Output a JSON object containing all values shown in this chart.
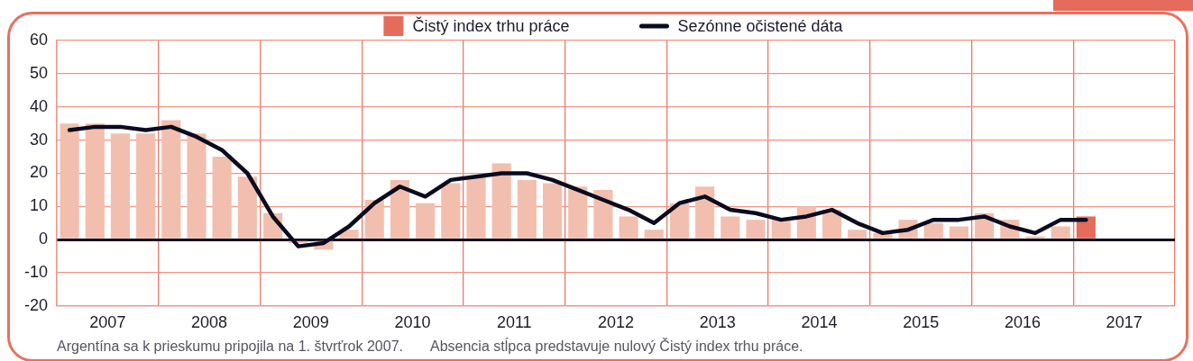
{
  "chart_data": {
    "type": "bar",
    "x": [
      2007.125,
      2007.375,
      2007.625,
      2007.875,
      2008.125,
      2008.375,
      2008.625,
      2008.875,
      2009.125,
      2009.375,
      2009.625,
      2009.875,
      2010.125,
      2010.375,
      2010.625,
      2010.875,
      2011.125,
      2011.375,
      2011.625,
      2011.875,
      2012.125,
      2012.375,
      2012.625,
      2012.875,
      2013.125,
      2013.375,
      2013.625,
      2013.875,
      2014.125,
      2014.375,
      2014.625,
      2014.875,
      2015.125,
      2015.375,
      2015.625,
      2015.875,
      2016.125,
      2016.375,
      2016.625,
      2016.875,
      2017.125
    ],
    "series": [
      {
        "name": "Čistý index trhu práce",
        "color": "#e56b5a",
        "values": [
          null,
          null,
          null,
          null,
          null,
          null,
          null,
          null,
          null,
          null,
          null,
          null,
          null,
          null,
          null,
          null,
          null,
          null,
          null,
          null,
          null,
          null,
          null,
          null,
          null,
          null,
          null,
          null,
          null,
          null,
          null,
          null,
          null,
          null,
          null,
          null,
          null,
          null,
          null,
          null,
          7
        ]
      },
      {
        "color": "#f2bfae",
        "values": [
          35,
          35,
          32,
          32,
          36,
          32,
          25,
          19,
          8,
          -1,
          -3,
          3,
          12,
          18,
          11,
          17,
          19,
          23,
          18,
          17,
          16,
          15,
          7,
          3,
          11,
          16,
          7,
          6,
          6,
          10,
          9,
          3,
          2,
          6,
          5,
          4,
          8,
          6,
          1,
          4,
          null
        ]
      },
      {
        "name": "Sezónne očistené dáta",
        "type": "line",
        "color": "#0b0b1f",
        "values": [
          33,
          34,
          34,
          33,
          34,
          31,
          27,
          20,
          7,
          -2,
          -1,
          4,
          11,
          16,
          13,
          18,
          19,
          20,
          20,
          18,
          15,
          12,
          9,
          5,
          11,
          13,
          9,
          8,
          6,
          7,
          9,
          5,
          2,
          3,
          6,
          6,
          7,
          4,
          2,
          6,
          6
        ]
      }
    ],
    "xlim": [
      2007,
      2018
    ],
    "xticks": [
      {
        "value": 2007,
        "label": null
      },
      {
        "value": 2007.5,
        "label": "2007"
      },
      {
        "value": 2008,
        "label": null
      },
      {
        "value": 2008.5,
        "label": "2008"
      },
      {
        "value": 2009,
        "label": null
      },
      {
        "value": 2009.5,
        "label": "2009"
      },
      {
        "value": 2010,
        "label": null
      },
      {
        "value": 2010.5,
        "label": "2010"
      },
      {
        "value": 2011,
        "label": null
      },
      {
        "value": 2011.5,
        "label": "2011"
      },
      {
        "value": 2012,
        "label": null
      },
      {
        "value": 2012.5,
        "label": "2012"
      },
      {
        "value": 2013,
        "label": null
      },
      {
        "value": 2013.5,
        "label": "2013"
      },
      {
        "value": 2014,
        "label": null
      },
      {
        "value": 2014.5,
        "label": "2014"
      },
      {
        "value": 2015,
        "label": null
      },
      {
        "value": 2015.5,
        "label": "2015"
      },
      {
        "value": 2016,
        "label": null
      },
      {
        "value": 2016.5,
        "label": "2016"
      },
      {
        "value": 2017,
        "label": null
      },
      {
        "value": 2017.5,
        "label": "2017"
      },
      {
        "value": 2018,
        "label": null
      }
    ],
    "ylim": [
      -20,
      60
    ],
    "yticks": [
      -20,
      -10,
      0,
      10,
      20,
      30,
      40,
      50,
      60
    ],
    "grid": true,
    "legend": "top",
    "annotations": [
      "Argentína sa k prieskumu pripojila na 1. štvrťrok 2007.",
      "Absencia stĺpca predstavuje nulový Čistý index trhu práce."
    ]
  }
}
